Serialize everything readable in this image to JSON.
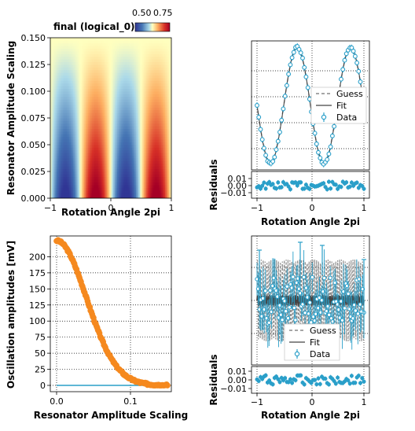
{
  "colors": {
    "data": "#2a9fc9",
    "fit": "#444444",
    "guess": "#888888",
    "orange": "#f5891f",
    "zero_line": "#2a9fc9"
  },
  "chart_data": [
    {
      "id": "heatmap",
      "type": "heatmap",
      "title": "final (logical_0)",
      "xlabel": "Rotation Angle 2pi",
      "ylabel": "Resonator Amplitude Scaling",
      "xlim": [
        -1,
        1
      ],
      "ylim": [
        0,
        0.15
      ],
      "xticks": [
        "−1",
        "0",
        "1"
      ],
      "yticks": [
        "0.000",
        "0.025",
        "0.050",
        "0.075",
        "0.100",
        "0.125",
        "0.150"
      ],
      "colorbar": {
        "ticks": [
          "0.50",
          "0.75"
        ],
        "colormap": "RdYlBu_r"
      }
    },
    {
      "id": "fit_top",
      "type": "scatter",
      "xlabel": "Rotation Angle 2pi",
      "residuals_label": "Residuals",
      "xlim": [
        -1,
        1
      ],
      "xticks": [
        "−1",
        "0",
        "1"
      ],
      "residual_yticks": [
        "0.01",
        "0.00",
        "−0.01"
      ],
      "grid": true,
      "legend": [
        "Guess",
        "Fit",
        "Data"
      ],
      "legend_position": "center-right"
    },
    {
      "id": "oscillation",
      "type": "line",
      "xlabel": "Resonator Amplitude Scaling",
      "ylabel": "Oscillation amplitudes [mV]",
      "xlim": [
        0,
        0.15
      ],
      "ylim": [
        0,
        225
      ],
      "xticks": [
        "0.0",
        "0.1"
      ],
      "yticks": [
        "0",
        "25",
        "50",
        "75",
        "100",
        "125",
        "150",
        "175",
        "200"
      ],
      "grid": true
    },
    {
      "id": "fit_bottom",
      "type": "scatter",
      "xlabel": "Rotation Angle 2pi",
      "residuals_label": "Residuals",
      "xlim": [
        -1,
        1
      ],
      "xticks": [
        "−1",
        "0",
        "1"
      ],
      "residual_yticks": [
        "0.01",
        "0.00",
        "−0.01"
      ],
      "grid": true,
      "legend": [
        "Guess",
        "Fit",
        "Data"
      ],
      "legend_position": "lower-center"
    }
  ]
}
